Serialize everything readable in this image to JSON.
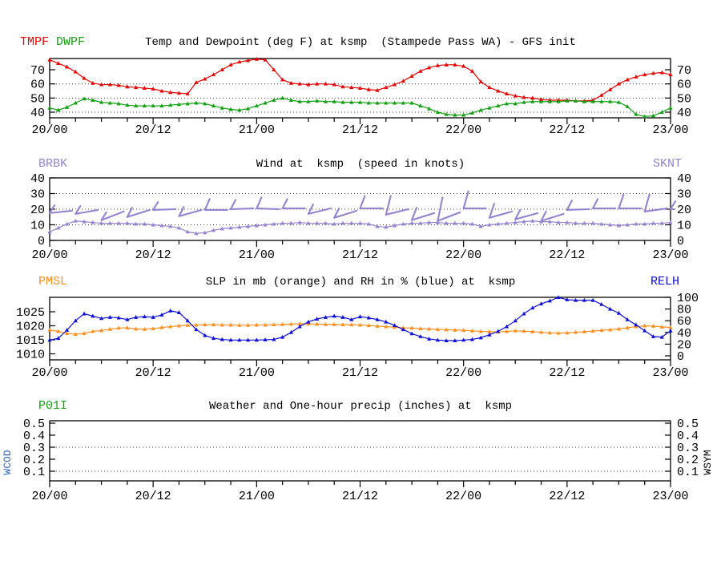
{
  "colors": {
    "red": "#e60000",
    "green": "#12a012",
    "purple": "#9583cf",
    "orange": "#ff9020",
    "blue": "#0f0fd6",
    "wcod_blue": "#3366bb",
    "black": "#000000",
    "grid": "#444444"
  },
  "x_axis": {
    "tick_labels": [
      "20/00",
      "20/12",
      "21/00",
      "21/12",
      "22/00",
      "22/12",
      "23/00"
    ],
    "label_interval_hours": 12,
    "minor_tick_hours": 3,
    "total_hours": 72
  },
  "side_labels": {
    "left": "WCOD",
    "right": "WSYM"
  },
  "chart_data": [
    {
      "type": "line",
      "title": "Temp and Dewpoint (deg F) at ksmp  (Stampede Pass WA) - GFS init",
      "legend": [
        {
          "label": "TMPF",
          "color": "red"
        },
        {
          "label": "DWPF",
          "color": "green"
        }
      ],
      "y_ticks": [
        70,
        60,
        50,
        40
      ],
      "grid_values": [
        60,
        50,
        40
      ],
      "ylim": [
        36,
        78
      ],
      "x_interval_hours": 1,
      "series": [
        {
          "name": "TMPF",
          "axis": "left",
          "color": "red",
          "values": [
            77,
            74.5,
            72,
            68.5,
            64,
            60.5,
            59.5,
            59.5,
            59,
            58,
            57.5,
            57,
            56.5,
            55,
            54,
            53.5,
            53,
            61,
            63.5,
            66.5,
            70,
            73.5,
            75.5,
            76.5,
            77.5,
            77,
            70,
            63,
            60.5,
            60,
            59.5,
            60,
            60,
            59.5,
            58,
            57.5,
            57,
            56,
            55.5,
            57.5,
            59.5,
            62,
            65.5,
            69,
            71.5,
            73,
            73.5,
            73.5,
            72.5,
            69,
            61.5,
            57.5,
            55,
            53,
            51.5,
            50.5,
            50,
            49,
            48.5,
            48.5,
            48.5,
            48,
            48,
            48.5,
            52,
            56,
            60,
            63,
            65,
            66.5,
            67.5,
            68,
            66.5
          ]
        },
        {
          "name": "DWPF",
          "axis": "left",
          "color": "green",
          "values": [
            43,
            41.5,
            43.5,
            46.5,
            49.5,
            48.5,
            47,
            46.5,
            46,
            45,
            44.5,
            44.5,
            44.5,
            44.5,
            45,
            45.5,
            46,
            46.5,
            46,
            44.5,
            43,
            42,
            41.5,
            42.5,
            44.5,
            46.5,
            48.5,
            50,
            48.5,
            47.5,
            47.5,
            48,
            47.5,
            47.5,
            47,
            47,
            47,
            46.5,
            46.5,
            46.5,
            46.5,
            46.5,
            46.5,
            44.5,
            42.5,
            40,
            38.5,
            38,
            38,
            39.5,
            41.5,
            43,
            44.5,
            46,
            46,
            47,
            47.5,
            47.5,
            47.5,
            47.5,
            48,
            48,
            47.5,
            47.5,
            47.5,
            47.5,
            47,
            44,
            38.5,
            37,
            37.5,
            40,
            43
          ]
        }
      ]
    },
    {
      "type": "line+barbs",
      "title": "Wind at  ksmp  (speed in knots)",
      "legend_left": "BRBK",
      "legend_right": "SKNT",
      "y_ticks": [
        40,
        30,
        20,
        10,
        0
      ],
      "grid_values": [
        30,
        20,
        10
      ],
      "ylim": [
        0,
        40
      ],
      "x_interval_hours": 1,
      "series": [
        {
          "name": "SKNT",
          "axis": "left",
          "color": "purple",
          "values": [
            5.5,
            8,
            10.5,
            12.5,
            12,
            11.5,
            11,
            11,
            11,
            11,
            10.5,
            10.5,
            10,
            9.5,
            9,
            8,
            5.5,
            4.5,
            5,
            6.5,
            7.5,
            8,
            8.5,
            9,
            9.5,
            10,
            10.5,
            11,
            11,
            11.5,
            11,
            11,
            11,
            10.5,
            11,
            11,
            11,
            10.5,
            9,
            8.5,
            9.5,
            10.5,
            11,
            11,
            11.5,
            11.5,
            11,
            11,
            11,
            10.5,
            9,
            10,
            10.5,
            11,
            11.5,
            12,
            12.5,
            12,
            12,
            11.5,
            11.5,
            11,
            11,
            11,
            10.5,
            10,
            9.5,
            10,
            10.5,
            10.5,
            11,
            11,
            11.5
          ]
        }
      ],
      "wind_barbs": [
        {
          "hour": 0,
          "base_kt": 17.5,
          "tip_kt": 19,
          "feather_kt": 5
        },
        {
          "hour": 3,
          "base_kt": 17,
          "tip_kt": 19.5,
          "feather_kt": 5
        },
        {
          "hour": 6,
          "base_kt": 13,
          "tip_kt": 18.5,
          "feather_kt": 5
        },
        {
          "hour": 9,
          "base_kt": 15,
          "tip_kt": 19.5,
          "feather_kt": 6
        },
        {
          "hour": 12,
          "base_kt": 19.5,
          "tip_kt": 20,
          "feather_kt": 5
        },
        {
          "hour": 15,
          "base_kt": 15.5,
          "tip_kt": 19.5,
          "feather_kt": 6
        },
        {
          "hour": 18,
          "base_kt": 19.5,
          "tip_kt": 19.5,
          "feather_kt": 7
        },
        {
          "hour": 21,
          "base_kt": 20,
          "tip_kt": 20.5,
          "feather_kt": 6
        },
        {
          "hour": 24,
          "base_kt": 20.5,
          "tip_kt": 20,
          "feather_kt": 7
        },
        {
          "hour": 27,
          "base_kt": 20.5,
          "tip_kt": 20.5,
          "feather_kt": 6
        },
        {
          "hour": 30,
          "base_kt": 17,
          "tip_kt": 20.5,
          "feather_kt": 6
        },
        {
          "hour": 33,
          "base_kt": 14.5,
          "tip_kt": 19,
          "feather_kt": 6
        },
        {
          "hour": 36,
          "base_kt": 20.5,
          "tip_kt": 20.5,
          "feather_kt": 8
        },
        {
          "hour": 39,
          "base_kt": 16.5,
          "tip_kt": 20,
          "feather_kt": 12
        },
        {
          "hour": 42,
          "base_kt": 13,
          "tip_kt": 17.5,
          "feather_kt": 8
        },
        {
          "hour": 45,
          "base_kt": 12.5,
          "tip_kt": 18,
          "feather_kt": 15
        },
        {
          "hour": 48,
          "base_kt": 20.5,
          "tip_kt": 20.5,
          "feather_kt": 11
        },
        {
          "hour": 51,
          "base_kt": 14.5,
          "tip_kt": 18.5,
          "feather_kt": 9
        },
        {
          "hour": 54,
          "base_kt": 13.5,
          "tip_kt": 17.5,
          "feather_kt": 6
        },
        {
          "hour": 57,
          "base_kt": 12.5,
          "tip_kt": 17,
          "feather_kt": 6
        },
        {
          "hour": 60,
          "base_kt": 19.5,
          "tip_kt": 20,
          "feather_kt": 6
        },
        {
          "hour": 63,
          "base_kt": 20.5,
          "tip_kt": 20.5,
          "feather_kt": 6
        },
        {
          "hour": 66,
          "base_kt": 20.5,
          "tip_kt": 20.5,
          "feather_kt": 9
        },
        {
          "hour": 69,
          "base_kt": 18.5,
          "tip_kt": 20.5,
          "feather_kt": 11
        },
        {
          "hour": 72,
          "base_kt": 20,
          "tip_kt": 20,
          "feather_kt": 5
        }
      ]
    },
    {
      "type": "line",
      "title": "SLP in mb (orange) and RH in % (blue) at  ksmp",
      "legend_left": "PMSL",
      "legend_right": "RELH",
      "y_ticks_left": [
        1025,
        1020,
        1015,
        1010
      ],
      "y_ticks_right": [
        100,
        80,
        60,
        40,
        20,
        0
      ],
      "grid_values": [],
      "ylim_left": [
        1008.5,
        1030.5
      ],
      "ylim_right": [
        0,
        100
      ],
      "x_interval_hours": 1,
      "series": [
        {
          "name": "PMSL",
          "axis": "left",
          "color": "orange",
          "values": [
            1018.5,
            1018,
            1017.3,
            1017,
            1017.3,
            1018,
            1018.3,
            1018.8,
            1019.2,
            1019.3,
            1018.9,
            1018.8,
            1019,
            1019.4,
            1019.7,
            1020,
            1020.2,
            1020.3,
            1020.4,
            1020.4,
            1020.3,
            1020.3,
            1020.2,
            1020.2,
            1020.3,
            1020.3,
            1020.4,
            1020.5,
            1020.6,
            1020.7,
            1020.7,
            1020.6,
            1020.5,
            1020.5,
            1020.4,
            1020.4,
            1020.3,
            1020.1,
            1019.9,
            1019.7,
            1019.5,
            1019.3,
            1019.2,
            1019,
            1018.9,
            1018.7,
            1018.6,
            1018.5,
            1018.4,
            1018.2,
            1018,
            1017.9,
            1017.8,
            1018,
            1018.2,
            1018.1,
            1017.9,
            1017.7,
            1017.5,
            1017.4,
            1017.5,
            1017.7,
            1017.9,
            1018.1,
            1018.4,
            1018.6,
            1018.9,
            1019.3,
            1019.7,
            1020,
            1019.9,
            1019.6,
            1019.4
          ]
        },
        {
          "name": "RELH",
          "axis": "right",
          "color": "blue",
          "values": [
            27,
            30,
            44,
            60,
            72,
            68,
            64,
            66,
            65,
            62,
            66,
            67,
            66,
            70,
            77,
            74,
            60,
            45,
            35,
            30,
            28,
            27,
            27,
            27,
            27,
            27.5,
            28,
            32,
            40,
            50,
            58,
            63,
            66,
            68,
            66,
            62,
            67,
            65,
            62,
            58,
            52,
            45,
            38,
            33,
            29,
            27,
            26,
            26,
            27,
            28,
            31,
            36,
            42,
            50,
            60,
            72,
            82,
            89,
            94,
            100,
            96,
            95,
            95,
            95,
            88,
            80,
            73,
            62,
            53,
            43,
            33,
            32,
            43
          ]
        }
      ]
    },
    {
      "type": "line",
      "title": "Weather and One-hour precip (inches) at  ksmp",
      "legend_left": "P01I",
      "y_ticks": [
        0.5,
        0.4,
        0.3,
        0.2,
        0.1
      ],
      "grid_values": [
        0.3,
        0.1
      ],
      "ylim": [
        0.05,
        0.52
      ],
      "series": []
    }
  ]
}
